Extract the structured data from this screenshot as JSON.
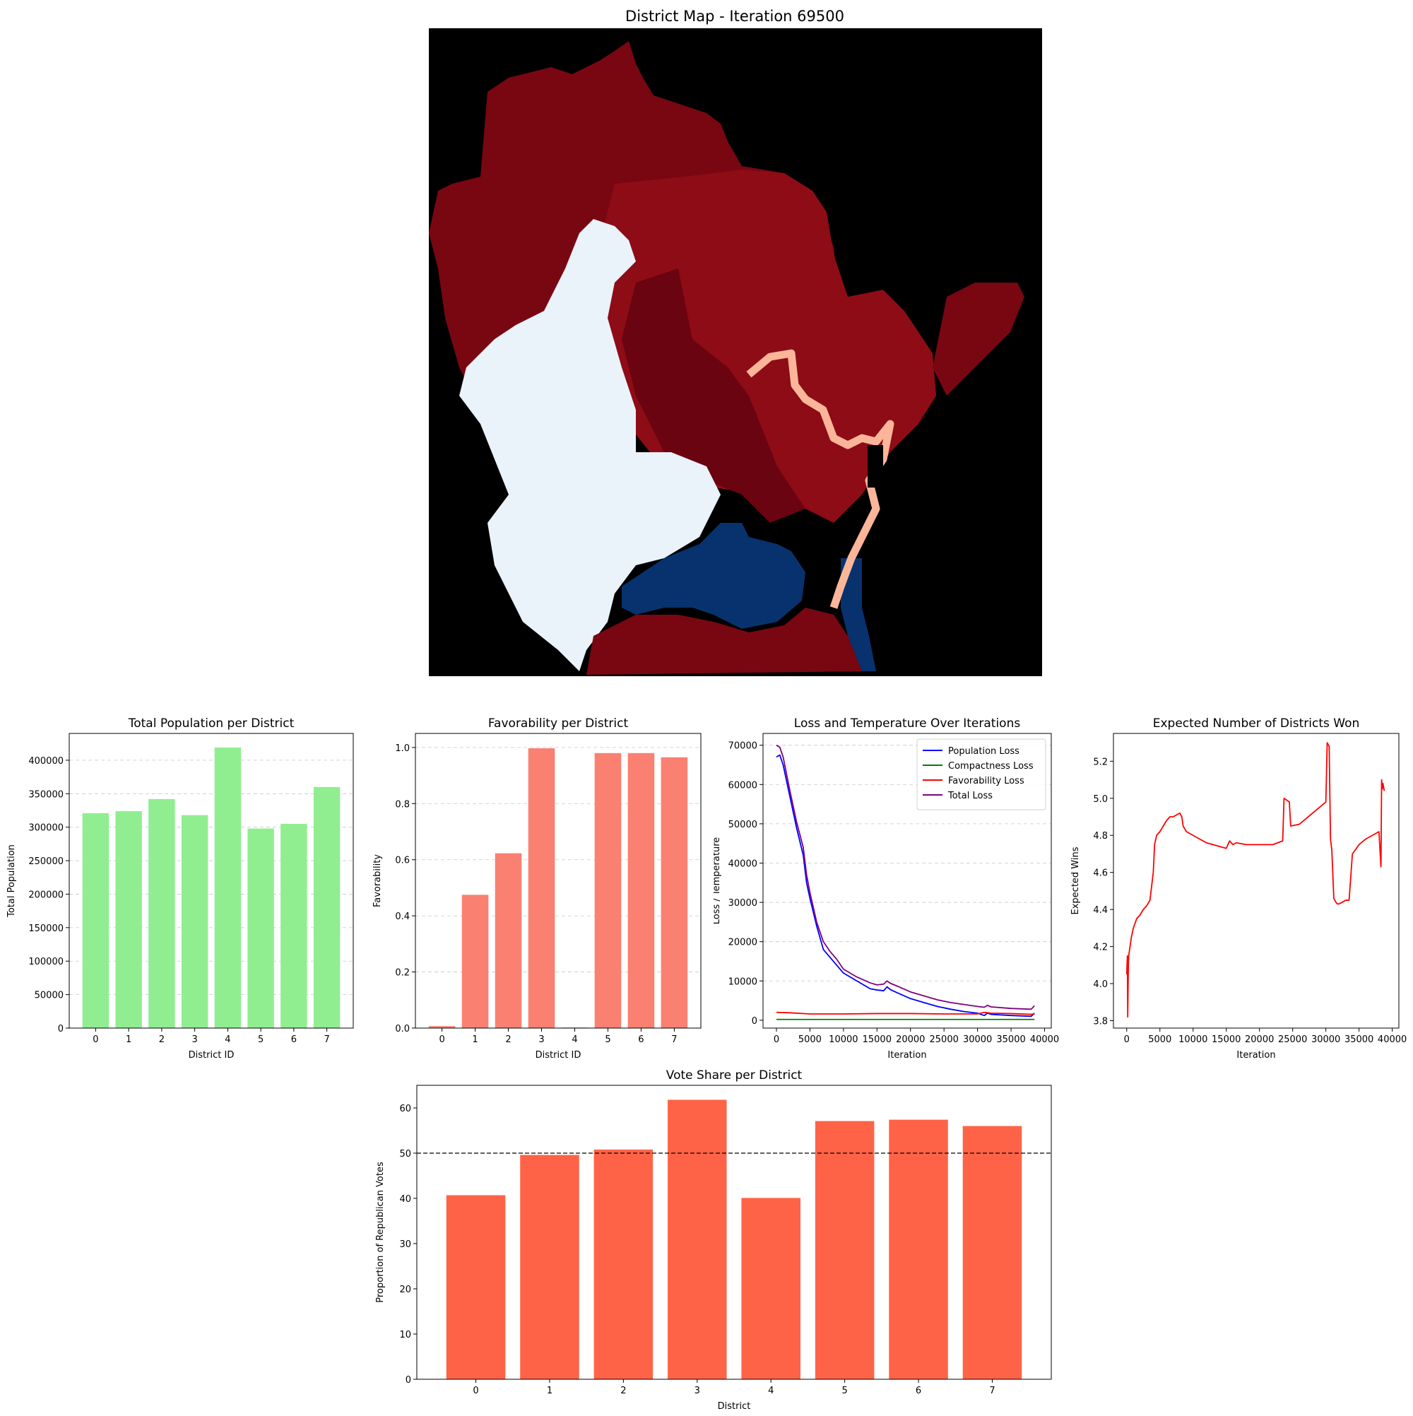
{
  "map": {
    "title": "District Map - Iteration 69500",
    "colors": {
      "background": "#000000",
      "dark_red": "#780712",
      "mid_red": "#8e0c16",
      "deep_red": "#6a0410",
      "light_blue": "#eaf2fa",
      "navy": "#08326e",
      "salmon": "#fbb69a"
    }
  },
  "colors": {
    "population_bar": "#90ee90",
    "favorability_bar": "#fa8072",
    "vote_bar": "#ff6347",
    "population_loss": "#0000ff",
    "compactness_loss": "#008000",
    "favorability_loss": "#ff0000",
    "total_loss": "#800080",
    "expected_wins": "#ff0000",
    "grid": "#b0b0b0"
  },
  "chart_data": [
    {
      "id": "population",
      "type": "bar",
      "title": "Total Population per District",
      "xlabel": "District ID",
      "ylabel": "Total Population",
      "categories": [
        "0",
        "1",
        "2",
        "3",
        "4",
        "5",
        "6",
        "7"
      ],
      "values": [
        321000,
        324000,
        342000,
        318000,
        419000,
        298000,
        305000,
        360000
      ],
      "ylim": [
        0,
        440000
      ],
      "yticks": [
        "0",
        "50000",
        "100000",
        "150000",
        "200000",
        "250000",
        "300000",
        "350000",
        "400000"
      ],
      "grid": "y-dashed"
    },
    {
      "id": "favorability",
      "type": "bar",
      "title": "Favorability per District",
      "xlabel": "District ID",
      "ylabel": "Favorability",
      "categories": [
        "0",
        "1",
        "2",
        "3",
        "4",
        "5",
        "6",
        "7"
      ],
      "values": [
        0.007,
        0.475,
        0.623,
        0.997,
        0.002,
        0.98,
        0.98,
        0.965
      ],
      "ylim": [
        0,
        1.05
      ],
      "yticks": [
        "0.0",
        "0.2",
        "0.4",
        "0.6",
        "0.8",
        "1.0"
      ],
      "grid": "y-dashed"
    },
    {
      "id": "loss",
      "type": "line",
      "title": "Loss and Temperature Over Iterations",
      "xlabel": "Iteration",
      "ylabel": "Loss / Temperature",
      "xlim": [
        -2000,
        41000
      ],
      "ylim": [
        -2000,
        73000
      ],
      "xticks": [
        "0",
        "5000",
        "10000",
        "15000",
        "20000",
        "25000",
        "30000",
        "35000",
        "40000"
      ],
      "yticks": [
        "0",
        "10000",
        "20000",
        "30000",
        "40000",
        "50000",
        "60000",
        "70000"
      ],
      "legend_position": "top-right",
      "grid": "y-dashed",
      "series": [
        {
          "name": "Population Loss",
          "x": [
            0,
            500,
            1000,
            2000,
            3000,
            4000,
            4500,
            5000,
            6000,
            7000,
            8000,
            9000,
            10000,
            12000,
            14000,
            15000,
            16000,
            16500,
            17000,
            18000,
            20000,
            22000,
            24000,
            26000,
            28000,
            30000,
            31000,
            31500,
            32000,
            35000,
            38000,
            38500
          ],
          "y": [
            67000,
            67500,
            65000,
            57000,
            49000,
            42000,
            35000,
            31000,
            24000,
            18000,
            16000,
            14000,
            12000,
            10000,
            8000,
            7700,
            7500,
            8500,
            7800,
            7000,
            5500,
            4500,
            3500,
            2800,
            2200,
            1800,
            1200,
            1800,
            1500,
            1200,
            1000,
            1800
          ]
        },
        {
          "name": "Compactness Loss",
          "x": [
            0,
            10000,
            20000,
            30000,
            38500
          ],
          "y": [
            200,
            200,
            200,
            200,
            200
          ]
        },
        {
          "name": "Favorability Loss",
          "x": [
            0,
            2000,
            5000,
            10000,
            15000,
            20000,
            25000,
            30000,
            31000,
            32000,
            35000,
            38000,
            38500
          ],
          "y": [
            2000,
            1900,
            1600,
            1600,
            1700,
            1700,
            1600,
            1600,
            2000,
            1800,
            1700,
            1500,
            1600
          ]
        },
        {
          "name": "Total Loss",
          "x": [
            0,
            500,
            1000,
            2000,
            3000,
            4000,
            4500,
            5000,
            6000,
            7000,
            8000,
            9000,
            10000,
            12000,
            14000,
            15000,
            16000,
            16500,
            17000,
            18000,
            20000,
            22000,
            24000,
            26000,
            28000,
            30000,
            31000,
            31500,
            32000,
            35000,
            38000,
            38500
          ],
          "y": [
            70000,
            69500,
            67000,
            58500,
            50500,
            44000,
            37000,
            32500,
            25000,
            20000,
            17500,
            15500,
            13000,
            11000,
            9500,
            9000,
            9200,
            10000,
            9400,
            8700,
            7200,
            6200,
            5200,
            4500,
            4000,
            3500,
            3300,
            3800,
            3400,
            3000,
            2800,
            3700
          ]
        }
      ]
    },
    {
      "id": "expected_wins",
      "type": "line",
      "title": "Expected Number of Districts Won",
      "xlabel": "Iteration",
      "ylabel": "Expected Wins",
      "xlim": [
        -2000,
        41000
      ],
      "ylim": [
        3.76,
        5.35
      ],
      "xticks": [
        "0",
        "5000",
        "10000",
        "15000",
        "20000",
        "25000",
        "30000",
        "35000",
        "40000"
      ],
      "yticks": [
        "3.8",
        "4.0",
        "4.2",
        "4.4",
        "4.6",
        "4.8",
        "5.0",
        "5.2"
      ],
      "grid": "none",
      "series": [
        {
          "name": "",
          "x": [
            0,
            100,
            150,
            250,
            300,
            500,
            700,
            1000,
            1500,
            2000,
            2500,
            3000,
            3500,
            4000,
            4200,
            4500,
            5000,
            5500,
            6000,
            6500,
            7000,
            7500,
            8000,
            8300,
            8500,
            9000,
            10000,
            11000,
            12000,
            13000,
            15000,
            15500,
            16000,
            16500,
            18000,
            20000,
            22000,
            23500,
            23700,
            24500,
            24700,
            26000,
            28000,
            30000,
            30200,
            30500,
            30700,
            30900,
            31200,
            31500,
            31700,
            32000,
            33000,
            33500,
            34000,
            35000,
            36000,
            37000,
            38000,
            38300,
            38400,
            38500,
            38600,
            38800
          ],
          "y": [
            4.05,
            4.15,
            3.82,
            4.1,
            4.15,
            4.2,
            4.25,
            4.3,
            4.35,
            4.37,
            4.4,
            4.42,
            4.45,
            4.6,
            4.75,
            4.8,
            4.82,
            4.85,
            4.88,
            4.9,
            4.9,
            4.91,
            4.92,
            4.9,
            4.85,
            4.82,
            4.8,
            4.78,
            4.76,
            4.75,
            4.73,
            4.77,
            4.75,
            4.76,
            4.75,
            4.75,
            4.75,
            4.77,
            5.0,
            4.98,
            4.85,
            4.86,
            4.92,
            4.98,
            5.3,
            5.28,
            4.78,
            4.72,
            4.46,
            4.44,
            4.43,
            4.43,
            4.45,
            4.45,
            4.7,
            4.75,
            4.78,
            4.8,
            4.82,
            4.63,
            5.1,
            5.05,
            5.08,
            5.04
          ]
        }
      ]
    },
    {
      "id": "vote_share",
      "type": "bar",
      "title": "Vote Share per District",
      "xlabel": "District",
      "ylabel": "Proportion of Republican Votes",
      "categories": [
        "0",
        "1",
        "2",
        "3",
        "4",
        "5",
        "6",
        "7"
      ],
      "values": [
        40.7,
        49.6,
        50.8,
        61.8,
        40.1,
        57.1,
        57.4,
        56.0
      ],
      "ylim": [
        0,
        65
      ],
      "yticks": [
        "0",
        "10",
        "20",
        "30",
        "40",
        "50",
        "60"
      ],
      "reference_line": 50,
      "grid": "none"
    }
  ]
}
